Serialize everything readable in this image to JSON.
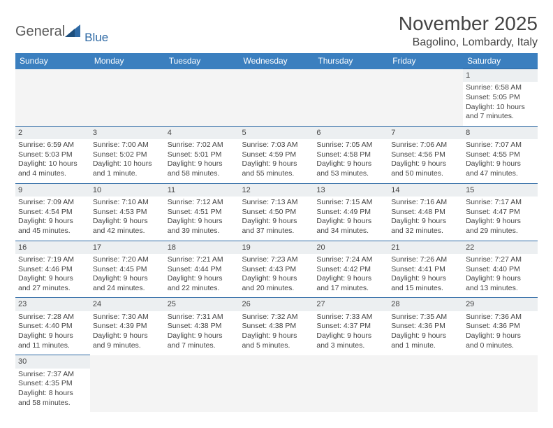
{
  "logo": {
    "general": "General",
    "blue": "Blue"
  },
  "title": "November 2025",
  "location": "Bagolino, Lombardy, Italy",
  "day_headers": [
    "Sunday",
    "Monday",
    "Tuesday",
    "Wednesday",
    "Thursday",
    "Friday",
    "Saturday"
  ],
  "colors": {
    "header_bg": "#3b7fbf",
    "header_text": "#ffffff",
    "daynum_bg": "#eceff1",
    "cell_border": "#2f6aa5",
    "text": "#444444"
  },
  "weeks": [
    [
      null,
      null,
      null,
      null,
      null,
      null,
      {
        "n": "1",
        "sr": "Sunrise: 6:58 AM",
        "ss": "Sunset: 5:05 PM",
        "dl": "Daylight: 10 hours and 7 minutes."
      }
    ],
    [
      {
        "n": "2",
        "sr": "Sunrise: 6:59 AM",
        "ss": "Sunset: 5:03 PM",
        "dl": "Daylight: 10 hours and 4 minutes."
      },
      {
        "n": "3",
        "sr": "Sunrise: 7:00 AM",
        "ss": "Sunset: 5:02 PM",
        "dl": "Daylight: 10 hours and 1 minute."
      },
      {
        "n": "4",
        "sr": "Sunrise: 7:02 AM",
        "ss": "Sunset: 5:01 PM",
        "dl": "Daylight: 9 hours and 58 minutes."
      },
      {
        "n": "5",
        "sr": "Sunrise: 7:03 AM",
        "ss": "Sunset: 4:59 PM",
        "dl": "Daylight: 9 hours and 55 minutes."
      },
      {
        "n": "6",
        "sr": "Sunrise: 7:05 AM",
        "ss": "Sunset: 4:58 PM",
        "dl": "Daylight: 9 hours and 53 minutes."
      },
      {
        "n": "7",
        "sr": "Sunrise: 7:06 AM",
        "ss": "Sunset: 4:56 PM",
        "dl": "Daylight: 9 hours and 50 minutes."
      },
      {
        "n": "8",
        "sr": "Sunrise: 7:07 AM",
        "ss": "Sunset: 4:55 PM",
        "dl": "Daylight: 9 hours and 47 minutes."
      }
    ],
    [
      {
        "n": "9",
        "sr": "Sunrise: 7:09 AM",
        "ss": "Sunset: 4:54 PM",
        "dl": "Daylight: 9 hours and 45 minutes."
      },
      {
        "n": "10",
        "sr": "Sunrise: 7:10 AM",
        "ss": "Sunset: 4:53 PM",
        "dl": "Daylight: 9 hours and 42 minutes."
      },
      {
        "n": "11",
        "sr": "Sunrise: 7:12 AM",
        "ss": "Sunset: 4:51 PM",
        "dl": "Daylight: 9 hours and 39 minutes."
      },
      {
        "n": "12",
        "sr": "Sunrise: 7:13 AM",
        "ss": "Sunset: 4:50 PM",
        "dl": "Daylight: 9 hours and 37 minutes."
      },
      {
        "n": "13",
        "sr": "Sunrise: 7:15 AM",
        "ss": "Sunset: 4:49 PM",
        "dl": "Daylight: 9 hours and 34 minutes."
      },
      {
        "n": "14",
        "sr": "Sunrise: 7:16 AM",
        "ss": "Sunset: 4:48 PM",
        "dl": "Daylight: 9 hours and 32 minutes."
      },
      {
        "n": "15",
        "sr": "Sunrise: 7:17 AM",
        "ss": "Sunset: 4:47 PM",
        "dl": "Daylight: 9 hours and 29 minutes."
      }
    ],
    [
      {
        "n": "16",
        "sr": "Sunrise: 7:19 AM",
        "ss": "Sunset: 4:46 PM",
        "dl": "Daylight: 9 hours and 27 minutes."
      },
      {
        "n": "17",
        "sr": "Sunrise: 7:20 AM",
        "ss": "Sunset: 4:45 PM",
        "dl": "Daylight: 9 hours and 24 minutes."
      },
      {
        "n": "18",
        "sr": "Sunrise: 7:21 AM",
        "ss": "Sunset: 4:44 PM",
        "dl": "Daylight: 9 hours and 22 minutes."
      },
      {
        "n": "19",
        "sr": "Sunrise: 7:23 AM",
        "ss": "Sunset: 4:43 PM",
        "dl": "Daylight: 9 hours and 20 minutes."
      },
      {
        "n": "20",
        "sr": "Sunrise: 7:24 AM",
        "ss": "Sunset: 4:42 PM",
        "dl": "Daylight: 9 hours and 17 minutes."
      },
      {
        "n": "21",
        "sr": "Sunrise: 7:26 AM",
        "ss": "Sunset: 4:41 PM",
        "dl": "Daylight: 9 hours and 15 minutes."
      },
      {
        "n": "22",
        "sr": "Sunrise: 7:27 AM",
        "ss": "Sunset: 4:40 PM",
        "dl": "Daylight: 9 hours and 13 minutes."
      }
    ],
    [
      {
        "n": "23",
        "sr": "Sunrise: 7:28 AM",
        "ss": "Sunset: 4:40 PM",
        "dl": "Daylight: 9 hours and 11 minutes."
      },
      {
        "n": "24",
        "sr": "Sunrise: 7:30 AM",
        "ss": "Sunset: 4:39 PM",
        "dl": "Daylight: 9 hours and 9 minutes."
      },
      {
        "n": "25",
        "sr": "Sunrise: 7:31 AM",
        "ss": "Sunset: 4:38 PM",
        "dl": "Daylight: 9 hours and 7 minutes."
      },
      {
        "n": "26",
        "sr": "Sunrise: 7:32 AM",
        "ss": "Sunset: 4:38 PM",
        "dl": "Daylight: 9 hours and 5 minutes."
      },
      {
        "n": "27",
        "sr": "Sunrise: 7:33 AM",
        "ss": "Sunset: 4:37 PM",
        "dl": "Daylight: 9 hours and 3 minutes."
      },
      {
        "n": "28",
        "sr": "Sunrise: 7:35 AM",
        "ss": "Sunset: 4:36 PM",
        "dl": "Daylight: 9 hours and 1 minute."
      },
      {
        "n": "29",
        "sr": "Sunrise: 7:36 AM",
        "ss": "Sunset: 4:36 PM",
        "dl": "Daylight: 9 hours and 0 minutes."
      }
    ],
    [
      {
        "n": "30",
        "sr": "Sunrise: 7:37 AM",
        "ss": "Sunset: 4:35 PM",
        "dl": "Daylight: 8 hours and 58 minutes."
      },
      null,
      null,
      null,
      null,
      null,
      null
    ]
  ]
}
